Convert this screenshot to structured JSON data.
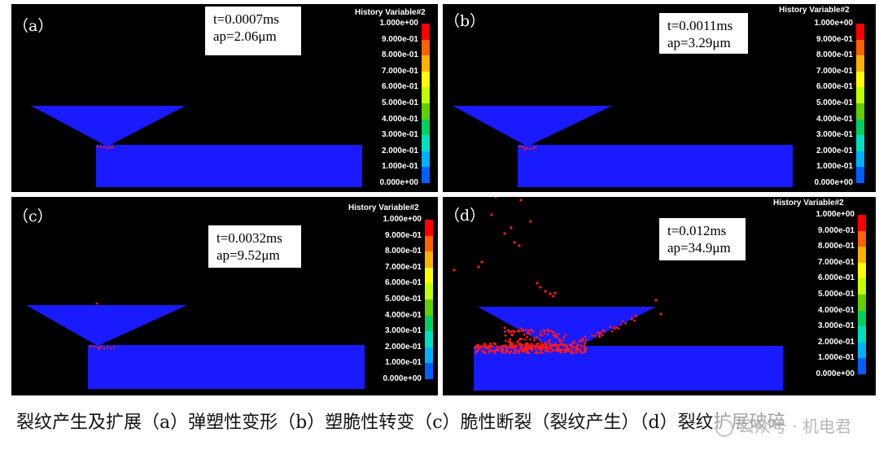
{
  "panels": [
    {
      "label": "（a）",
      "t_text": "t=0.0007ms",
      "ap_text": "ap=2.06μm"
    },
    {
      "label": "（b）",
      "t_text": "t=0.0011ms",
      "ap_text": "ap=3.29μm"
    },
    {
      "label": "（c）",
      "t_text": "t=0.0032ms",
      "ap_text": "ap=9.52μm"
    },
    {
      "label": "（d）",
      "t_text": "t=0.012ms",
      "ap_text": "ap=34.9μm"
    }
  ],
  "legend": {
    "title": "History Variable#2",
    "ticks": [
      "1.000e+00",
      "9.000e-01",
      "8.000e-01",
      "7.000e-01",
      "6.000e-01",
      "5.000e-01",
      "4.000e-01",
      "3.000e-01",
      "2.000e-01",
      "1.000e-01",
      "0.000e+00"
    ],
    "colors_top_to_bottom": [
      "#ff0000",
      "#ff6000",
      "#ffb000",
      "#ffff00",
      "#c0ff00",
      "#60d000",
      "#00d060",
      "#00e0c0",
      "#00b0ff",
      "#0060ff",
      "#0000ff"
    ]
  },
  "colors": {
    "material": "#1a1aff",
    "crack": "#ff1a1a",
    "background": "#000000"
  },
  "caption": "裂纹产生及扩展（a）弹塑性变形（b）塑脆性转变（c）脆性断裂（裂纹产生）（d）裂纹扩展破碎",
  "watermark": "公众号 · 机电君"
}
